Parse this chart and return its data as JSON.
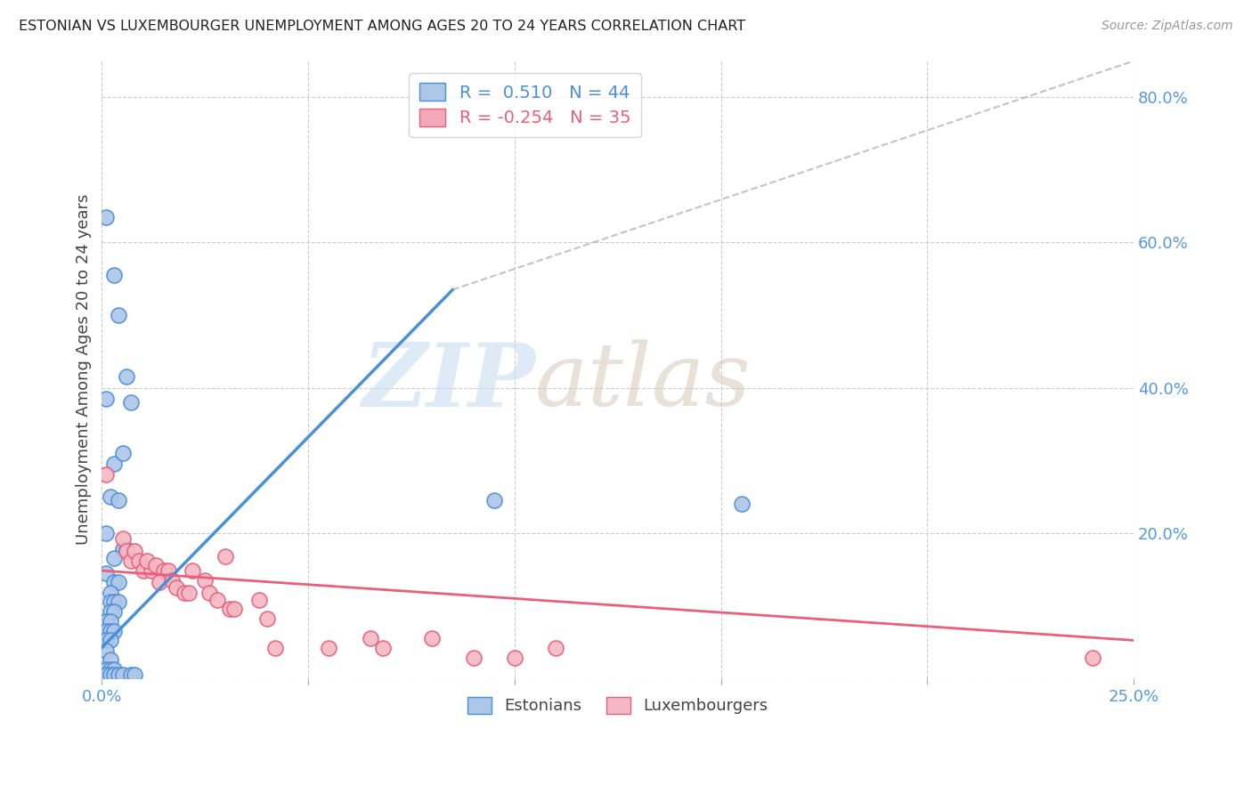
{
  "title": "ESTONIAN VS LUXEMBOURGER UNEMPLOYMENT AMONG AGES 20 TO 24 YEARS CORRELATION CHART",
  "source": "Source: ZipAtlas.com",
  "ylabel": "Unemployment Among Ages 20 to 24 years",
  "xlim": [
    0.0,
    0.25
  ],
  "ylim": [
    0.0,
    0.85
  ],
  "right_yticks": [
    0.0,
    0.2,
    0.4,
    0.6,
    0.8
  ],
  "right_yticklabels": [
    "",
    "20.0%",
    "40.0%",
    "60.0%",
    "80.0%"
  ],
  "xticks": [
    0.0,
    0.05,
    0.1,
    0.15,
    0.2,
    0.25
  ],
  "xticklabels": [
    "0.0%",
    "",
    "",
    "",
    "",
    "25.0%"
  ],
  "legend_entries": [
    {
      "label": "R =  0.510   N = 44",
      "color": "#aec6e8"
    },
    {
      "label": "R = -0.254   N = 35",
      "color": "#f4a7b9"
    }
  ],
  "estonian_scatter": [
    [
      0.001,
      0.635
    ],
    [
      0.003,
      0.555
    ],
    [
      0.004,
      0.5
    ],
    [
      0.006,
      0.415
    ],
    [
      0.003,
      0.295
    ],
    [
      0.005,
      0.31
    ],
    [
      0.002,
      0.25
    ],
    [
      0.004,
      0.245
    ],
    [
      0.001,
      0.2
    ],
    [
      0.005,
      0.178
    ],
    [
      0.006,
      0.178
    ],
    [
      0.003,
      0.165
    ],
    [
      0.001,
      0.145
    ],
    [
      0.003,
      0.132
    ],
    [
      0.004,
      0.132
    ],
    [
      0.002,
      0.118
    ],
    [
      0.002,
      0.105
    ],
    [
      0.003,
      0.105
    ],
    [
      0.004,
      0.105
    ],
    [
      0.002,
      0.092
    ],
    [
      0.003,
      0.092
    ],
    [
      0.001,
      0.078
    ],
    [
      0.002,
      0.078
    ],
    [
      0.001,
      0.065
    ],
    [
      0.002,
      0.065
    ],
    [
      0.003,
      0.065
    ],
    [
      0.001,
      0.052
    ],
    [
      0.002,
      0.052
    ],
    [
      0.001,
      0.038
    ],
    [
      0.002,
      0.025
    ],
    [
      0.001,
      0.012
    ],
    [
      0.002,
      0.012
    ],
    [
      0.003,
      0.012
    ],
    [
      0.001,
      0.005
    ],
    [
      0.002,
      0.005
    ],
    [
      0.003,
      0.005
    ],
    [
      0.004,
      0.005
    ],
    [
      0.005,
      0.005
    ],
    [
      0.007,
      0.005
    ],
    [
      0.008,
      0.005
    ],
    [
      0.095,
      0.245
    ],
    [
      0.155,
      0.24
    ],
    [
      0.001,
      0.385
    ],
    [
      0.007,
      0.38
    ]
  ],
  "luxembourger_scatter": [
    [
      0.001,
      0.28
    ],
    [
      0.005,
      0.192
    ],
    [
      0.006,
      0.175
    ],
    [
      0.007,
      0.162
    ],
    [
      0.008,
      0.175
    ],
    [
      0.009,
      0.162
    ],
    [
      0.01,
      0.148
    ],
    [
      0.012,
      0.148
    ],
    [
      0.011,
      0.162
    ],
    [
      0.013,
      0.155
    ],
    [
      0.015,
      0.148
    ],
    [
      0.016,
      0.148
    ],
    [
      0.014,
      0.132
    ],
    [
      0.017,
      0.135
    ],
    [
      0.018,
      0.125
    ],
    [
      0.02,
      0.118
    ],
    [
      0.021,
      0.118
    ],
    [
      0.022,
      0.148
    ],
    [
      0.025,
      0.135
    ],
    [
      0.026,
      0.118
    ],
    [
      0.028,
      0.108
    ],
    [
      0.03,
      0.168
    ],
    [
      0.031,
      0.095
    ],
    [
      0.032,
      0.095
    ],
    [
      0.038,
      0.108
    ],
    [
      0.04,
      0.082
    ],
    [
      0.042,
      0.042
    ],
    [
      0.055,
      0.042
    ],
    [
      0.065,
      0.055
    ],
    [
      0.068,
      0.042
    ],
    [
      0.08,
      0.055
    ],
    [
      0.09,
      0.028
    ],
    [
      0.1,
      0.028
    ],
    [
      0.11,
      0.042
    ],
    [
      0.24,
      0.028
    ]
  ],
  "estonian_line_solid": [
    [
      0.0,
      0.042
    ],
    [
      0.085,
      0.535
    ]
  ],
  "estonian_line_dashed": [
    [
      0.085,
      0.535
    ],
    [
      0.25,
      0.85
    ]
  ],
  "luxembourger_line": [
    [
      0.0,
      0.148
    ],
    [
      0.25,
      0.052
    ]
  ],
  "estonian_color": "#4a90d9",
  "estonian_scatter_color": "#aec6e8",
  "luxembourger_color": "#e8607a",
  "luxembourger_scatter_color": "#f4b8c4",
  "background_color": "#ffffff",
  "grid_color": "#cccccc"
}
